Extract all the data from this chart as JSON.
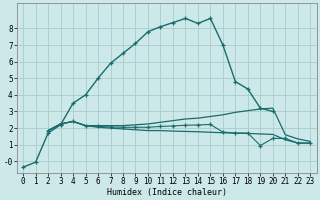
{
  "xlabel": "Humidex (Indice chaleur)",
  "bg_color": "#cce8e8",
  "grid_color": "#aacccc",
  "line_color": "#1a6b6b",
  "xlim": [
    -0.5,
    23.5
  ],
  "ylim": [
    -0.7,
    9.5
  ],
  "xticks": [
    0,
    1,
    2,
    3,
    4,
    5,
    6,
    7,
    8,
    9,
    10,
    11,
    12,
    13,
    14,
    15,
    16,
    17,
    18,
    19,
    20,
    21,
    22,
    23
  ],
  "ytick_labels": [
    "-0",
    "1",
    "2",
    "3",
    "4",
    "5",
    "6",
    "7",
    "8"
  ],
  "ytick_vals": [
    0,
    1,
    2,
    3,
    4,
    5,
    6,
    7,
    8
  ],
  "series": [
    {
      "x": [
        0,
        1,
        2,
        3,
        4,
        5,
        6,
        7,
        8,
        9,
        10,
        11,
        12,
        13,
        14,
        15,
        16,
        17,
        18,
        19,
        20
      ],
      "y": [
        -0.35,
        -0.05,
        1.7,
        2.2,
        3.5,
        4.0,
        5.0,
        5.9,
        6.5,
        7.1,
        7.8,
        8.1,
        8.35,
        8.6,
        8.3,
        8.6,
        7.0,
        4.8,
        4.35,
        3.2,
        3.0
      ],
      "marker": true,
      "lw": 1.0
    },
    {
      "x": [
        2,
        3,
        4,
        5,
        6,
        7,
        8,
        9,
        10,
        11,
        12,
        13,
        14,
        15,
        16,
        17,
        18,
        19,
        20,
        21,
        22,
        23
      ],
      "y": [
        1.85,
        2.25,
        2.4,
        2.15,
        2.15,
        2.15,
        2.15,
        2.2,
        2.25,
        2.35,
        2.45,
        2.55,
        2.6,
        2.7,
        2.8,
        2.95,
        3.05,
        3.15,
        3.2,
        1.6,
        1.35,
        1.2
      ],
      "marker": false,
      "lw": 0.9
    },
    {
      "x": [
        2,
        3,
        4,
        5,
        6,
        7,
        8,
        9,
        10,
        11,
        12,
        13,
        14,
        15,
        16,
        17,
        18,
        19,
        20,
        21,
        22,
        23
      ],
      "y": [
        1.85,
        2.25,
        2.4,
        2.15,
        2.05,
        2.0,
        1.95,
        1.9,
        1.85,
        1.85,
        1.82,
        1.8,
        1.78,
        1.75,
        1.72,
        1.7,
        1.68,
        1.65,
        1.62,
        1.3,
        1.1,
        1.1
      ],
      "marker": false,
      "lw": 0.9
    },
    {
      "x": [
        2,
        3,
        4,
        5,
        6,
        7,
        8,
        9,
        10,
        11,
        12,
        13,
        14,
        15,
        16,
        17,
        18,
        19,
        20,
        21,
        22,
        23
      ],
      "y": [
        1.85,
        2.25,
        2.4,
        2.15,
        2.1,
        2.07,
        2.05,
        2.05,
        2.05,
        2.1,
        2.13,
        2.17,
        2.19,
        2.22,
        1.76,
        1.7,
        1.7,
        0.95,
        1.38,
        1.38,
        1.1,
        1.1
      ],
      "marker": true,
      "lw": 0.8
    }
  ]
}
